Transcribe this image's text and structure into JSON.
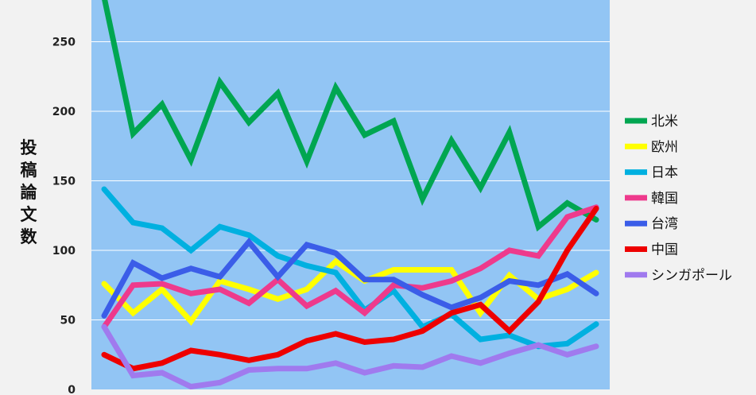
{
  "chart_data": {
    "type": "line",
    "title": "",
    "xlabel": "",
    "ylabel": "投稿論文数",
    "ylim": [
      0,
      280
    ],
    "yticks": [
      0,
      50,
      100,
      150,
      200,
      250
    ],
    "grid": true,
    "legend_position": "right",
    "plot_background": "#92c5f4",
    "x": [
      1,
      2,
      3,
      4,
      5,
      6,
      7,
      8,
      9,
      10,
      11,
      12,
      13,
      14,
      15,
      16,
      17,
      18
    ],
    "series": [
      {
        "name": "北米",
        "color": "#00a651",
        "values": [
          282,
          184,
          205,
          165,
          221,
          192,
          213,
          164,
          217,
          183,
          193,
          137,
          179,
          145,
          185,
          117,
          134,
          122
        ]
      },
      {
        "name": "欧州",
        "color": "#ffff00",
        "values": [
          76,
          55,
          72,
          49,
          78,
          72,
          65,
          72,
          92,
          78,
          86,
          86,
          86,
          55,
          82,
          65,
          72,
          84
        ]
      },
      {
        "name": "日本",
        "color": "#00b0e0",
        "values": [
          144,
          120,
          116,
          100,
          117,
          111,
          96,
          89,
          84,
          57,
          71,
          45,
          54,
          36,
          39,
          31,
          33,
          47
        ]
      },
      {
        "name": "韓国",
        "color": "#ee3a8c",
        "values": [
          45,
          75,
          76,
          69,
          72,
          62,
          79,
          60,
          71,
          55,
          75,
          73,
          78,
          87,
          100,
          96,
          124,
          131
        ]
      },
      {
        "name": "台湾",
        "color": "#3b5de8",
        "values": [
          53,
          91,
          80,
          87,
          81,
          106,
          81,
          104,
          98,
          79,
          79,
          68,
          59,
          66,
          78,
          75,
          83,
          69
        ]
      },
      {
        "name": "中国",
        "color": "#ee0000",
        "values": [
          25,
          15,
          19,
          28,
          25,
          21,
          25,
          35,
          40,
          34,
          36,
          42,
          55,
          61,
          42,
          63,
          100,
          130
        ]
      },
      {
        "name": "シンガポール",
        "color": "#a07aee",
        "values": [
          45,
          10,
          12,
          2,
          5,
          14,
          15,
          15,
          19,
          12,
          17,
          16,
          24,
          19,
          26,
          32,
          25,
          31
        ]
      }
    ]
  }
}
